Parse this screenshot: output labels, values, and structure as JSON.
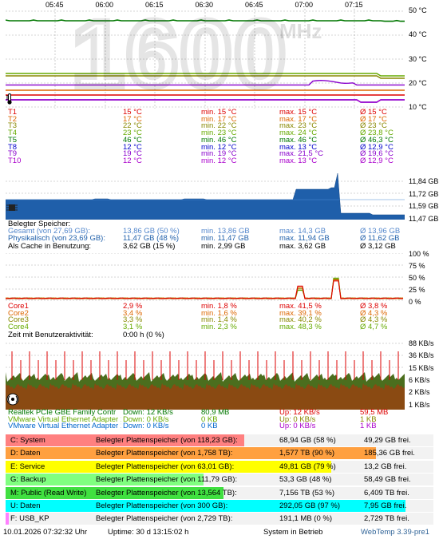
{
  "temp": {
    "time_ticks": [
      "05:45",
      "06:00",
      "06:15",
      "06:30",
      "06:45",
      "07:00",
      "07:15"
    ],
    "y_ticks": [
      "50 °C",
      "40 °C",
      "30 °C",
      "20 °C",
      "10 °C"
    ],
    "watermark_value": "1600",
    "watermark_unit": "MHz",
    "rows": [
      {
        "name": "T1",
        "cur": "15 °C",
        "min": "min. 15 °C",
        "max": "max. 15 °C",
        "avg": "Ø 15 °C",
        "color": "#dd0000"
      },
      {
        "name": "T2",
        "cur": "17 °C",
        "min": "min. 17 °C",
        "max": "max. 17 °C",
        "avg": "Ø 17 °C",
        "color": "#dd6600"
      },
      {
        "name": "T3",
        "cur": "22 °C",
        "min": "min. 22 °C",
        "max": "max. 23 °C",
        "avg": "Ø 23 °C",
        "color": "#888800"
      },
      {
        "name": "T4",
        "cur": "23 °C",
        "min": "min. 23 °C",
        "max": "max. 24 °C",
        "avg": "Ø 23,8 °C",
        "color": "#66aa00"
      },
      {
        "name": "T5",
        "cur": "46 °C",
        "min": "min. 46 °C",
        "max": "max. 46 °C",
        "avg": "Ø 46,3 °C",
        "color": "#007700"
      },
      {
        "name": "T8",
        "cur": "12 °C",
        "min": "min. 12 °C",
        "max": "max. 13 °C",
        "avg": "Ø 12,9 °C",
        "color": "#0000cc"
      },
      {
        "name": "T9",
        "cur": "19 °C",
        "min": "min. 19 °C",
        "max": "max. 21,5 °C",
        "avg": "Ø 19,6 °C",
        "color": "#8800cc"
      },
      {
        "name": "T10",
        "cur": "12 °C",
        "min": "min. 12 °C",
        "max": "max. 13 °C",
        "avg": "Ø 12,9 °C",
        "color": "#aa00cc"
      }
    ]
  },
  "memory": {
    "y_ticks": [
      "11,84 GB",
      "11,72 GB",
      "11,59 GB",
      "11,47 GB"
    ],
    "title": "Belegter Speicher:",
    "rows": [
      {
        "name": "Gesamt (von 27,69 GB):",
        "cur": "13,86 GB (50 %)",
        "min": "min. 13,86 GB",
        "max": "max. 14,3 GB",
        "avg": "Ø 13,96 GB",
        "color": "#5588cc"
      },
      {
        "name": "Physikalisch (von 23,69 GB):",
        "cur": "11,47 GB (48 %)",
        "min": "min. 11,47 GB",
        "max": "max. 11,94 GB",
        "avg": "Ø 11,62 GB",
        "color": "#1f5faa"
      },
      {
        "name": "Als Cache in Benutzung:",
        "cur": "3,62 GB (15 %)",
        "min": "min. 2,99 GB",
        "max": "max. 3,62 GB",
        "avg": "Ø 3,12 GB",
        "color": "#000000"
      }
    ]
  },
  "cpu": {
    "y_ticks": [
      "100 %",
      "75 %",
      "50 %",
      "25 %",
      "0 %"
    ],
    "rows": [
      {
        "name": "Core1",
        "cur": "2,9 %",
        "min": "min. 1,8 %",
        "max": "max. 41,5 %",
        "avg": "Ø 3,8 %",
        "color": "#dd0000"
      },
      {
        "name": "Core2",
        "cur": "3,4 %",
        "min": "min. 1,6 %",
        "max": "max. 39,1 %",
        "avg": "Ø 4,3 %",
        "color": "#dd6600"
      },
      {
        "name": "Core3",
        "cur": "3,3 %",
        "min": "min. 1,4 %",
        "max": "max. 40,2 %",
        "avg": "Ø 4,3 %",
        "color": "#888800"
      },
      {
        "name": "Core4",
        "cur": "3,1 %",
        "min": "min. 2,3 %",
        "max": "max. 48,3 %",
        "avg": "Ø 4,7 %",
        "color": "#66aa00"
      }
    ],
    "activity_label": "Zeit mit Benutzeraktivität:",
    "activity_value": "0:00 h (0 %)"
  },
  "network": {
    "y_ticks": [
      "88 KB/s",
      "36 KB/s",
      "15 KB/s",
      "6 KB/s",
      "2 KB/s",
      "1 KB/s"
    ],
    "rows": [
      {
        "name": "Realtek PCIe GBE Family Contr",
        "down": "Down: 12 KB/s",
        "total_down": "80,9 MB",
        "up": "Up: 12 KB/s",
        "total_up": "59,5 MB",
        "color": "#007700",
        "upcolor": "#dd0000"
      },
      {
        "name": "VMware Virtual Ethernet Adapter 1",
        "down": "Down: 0 KB/s",
        "total_down": "0 KB",
        "up": "Up: 0 KB/s",
        "total_up": "1 KB",
        "color": "#66aa00",
        "upcolor": "#888800"
      },
      {
        "name": "VMware Virtual Ethernet Adapter 1",
        "down": "Down: 0 KB/s",
        "total_down": "0 KB",
        "up": "Up: 0 KB/s",
        "total_up": "1 KB",
        "color": "#0066cc",
        "upcolor": "#aa00cc"
      }
    ]
  },
  "disks": [
    {
      "label": "C: System",
      "desc": "Belegter Plattenspeicher (von 118,23 GB):",
      "used": "68,94 GB (58 %)",
      "free": "49,29 GB frei.",
      "pct": 58,
      "color": "#ff8080"
    },
    {
      "label": "D: Daten",
      "desc": "Belegter Plattenspeicher (von 1,758 TB):",
      "used": "1,577 TB (90 %)",
      "free": "185,36 GB frei.",
      "pct": 90,
      "color": "#ffa040"
    },
    {
      "label": "E: Service",
      "desc": "Belegter Plattenspeicher (von 63,01 GB):",
      "used": "49,81 GB (79 %)",
      "free": "13,2 GB frei.",
      "pct": 79,
      "color": "#ffff00"
    },
    {
      "label": "G: Backup",
      "desc": "Belegter Plattenspeicher (von 111,79 GB):",
      "used": "53,3 GB (48 %)",
      "free": "58,49 GB frei.",
      "pct": 48,
      "color": "#80ff80"
    },
    {
      "label": "M: Public (Read Write)",
      "desc": "Belegter Plattenspeicher (von 13,564 TB):",
      "used": "7,156 TB (53 %)",
      "free": "6,409 TB frei.",
      "pct": 53,
      "color": "#40e040"
    },
    {
      "label": "U: Daten",
      "desc": "Belegter Plattenspeicher (von 300 GB):",
      "used": "292,05 GB (97 %)",
      "free": "7,95 GB frei.",
      "pct": 97,
      "color": "#00ffff"
    },
    {
      "label": "F: USB_KP",
      "desc": "Belegter Plattenspeicher (von 2,729 TB):",
      "used": "191,1 MB (0 %)",
      "free": "2,729 TB frei.",
      "pct": 0,
      "color": "#ff80ff"
    }
  ],
  "footer": {
    "datetime": "10.01.2026 07:32:32 Uhr",
    "uptime": "Uptime: 30 d 13:15:02 h",
    "status": "System in Betrieb",
    "app": "WebTemp 3.39-pre1"
  }
}
